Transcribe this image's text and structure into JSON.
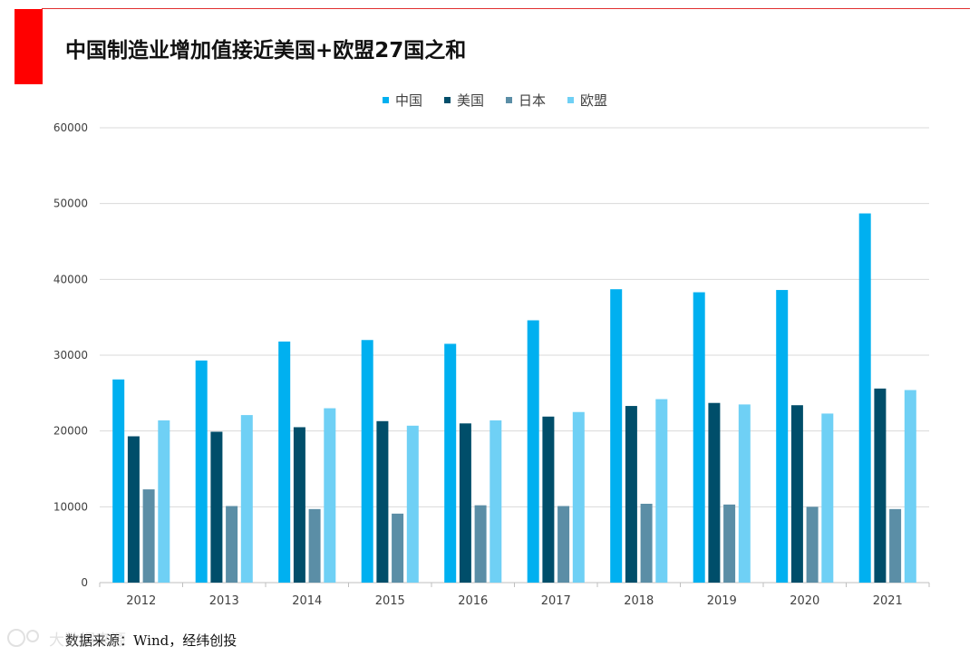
{
  "title": "中国制造业增加值接近美国+欧盟27国之和",
  "source": "数据来源：Wind，经纬创投",
  "watermark_text": "大数据来源",
  "colors": {
    "accent_red": "#ff0000",
    "series": [
      "#00b0f0",
      "#004e6a",
      "#5b8ea6",
      "#6fd0f5"
    ]
  },
  "chart_data": {
    "type": "bar",
    "title": "",
    "xlabel": "",
    "ylabel": "",
    "ylim": [
      0,
      60000
    ],
    "yticks": [
      "0",
      "10000",
      "20000",
      "30000",
      "40000",
      "50000",
      "60000"
    ],
    "grid": true,
    "legend_position": "top-center",
    "categories": [
      "2012",
      "2013",
      "2014",
      "2015",
      "2016",
      "2017",
      "2018",
      "2019",
      "2020",
      "2021"
    ],
    "series": [
      {
        "name": "中国",
        "values": [
          26800,
          29300,
          31800,
          32000,
          31500,
          34600,
          38700,
          38300,
          38600,
          48700
        ]
      },
      {
        "name": "美国",
        "values": [
          19300,
          19900,
          20500,
          21300,
          21000,
          21900,
          23300,
          23700,
          23400,
          25600
        ]
      },
      {
        "name": "日本",
        "values": [
          12300,
          10100,
          9700,
          9100,
          10200,
          10100,
          10400,
          10300,
          10000,
          9700
        ]
      },
      {
        "name": "欧盟",
        "values": [
          21400,
          22100,
          23000,
          20700,
          21400,
          22500,
          24200,
          23500,
          22300,
          25400
        ]
      }
    ]
  }
}
